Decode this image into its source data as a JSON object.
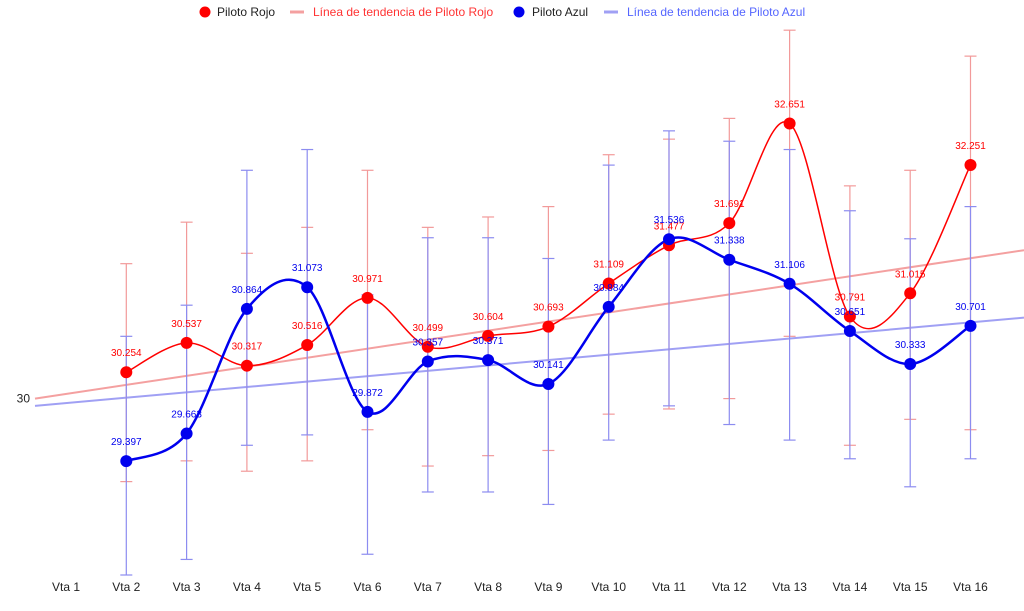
{
  "chart_data": {
    "type": "line",
    "categories": [
      "Vta 1",
      "Vta 2",
      "Vta 3",
      "Vta 4",
      "Vta 5",
      "Vta 6",
      "Vta 7",
      "Vta 8",
      "Vta 9",
      "Vta 10",
      "Vta 11",
      "Vta 12",
      "Vta 13",
      "Vta 14",
      "Vta 15",
      "Vta 16"
    ],
    "y_ticks": [
      30
    ],
    "ylim": [
      28.3,
      33.6
    ],
    "legend_position": "top",
    "series": [
      {
        "name": "Piloto Rojo",
        "color": "#ff0000",
        "values": [
          null,
          30.254,
          30.537,
          30.317,
          30.516,
          30.971,
          30.499,
          30.604,
          30.693,
          31.109,
          31.477,
          31.691,
          32.651,
          30.791,
          31.015,
          32.251
        ],
        "labels": [
          "",
          "30.254",
          "30.537",
          "30.317",
          "30.516",
          "30.971",
          "30.499",
          "30.604",
          "30.693",
          "31.109",
          "31.477",
          "31.691",
          "32.651",
          "30.791",
          "31.015",
          "32.251"
        ],
        "error_low": [
          null,
          29.2,
          29.4,
          29.3,
          29.4,
          29.7,
          29.35,
          29.45,
          29.5,
          29.85,
          29.9,
          30.0,
          30.6,
          29.55,
          29.8,
          29.7
        ],
        "error_high": [
          null,
          31.3,
          31.7,
          31.4,
          31.65,
          32.2,
          31.65,
          31.75,
          31.85,
          32.35,
          32.5,
          32.7,
          33.55,
          32.05,
          32.2,
          33.3
        ],
        "trendline": {
          "name": "Línea de tendencia de Piloto Rojo",
          "color": "#f4a0a0",
          "start": 30.0,
          "end": 31.43
        }
      },
      {
        "name": "Piloto Azul",
        "color": "#0000ee",
        "values": [
          null,
          29.397,
          29.663,
          30.864,
          31.073,
          29.872,
          30.357,
          30.371,
          30.141,
          30.884,
          31.536,
          31.338,
          31.106,
          30.651,
          30.333,
          30.701
        ],
        "labels": [
          "",
          "29.397",
          "29.663",
          "30.864",
          "31.073",
          "29.872",
          "30.357",
          "30.371",
          "30.141",
          "30.884",
          "31.536",
          "31.338",
          "31.106",
          "30.651",
          "30.333",
          "30.701"
        ],
        "error_low": [
          null,
          28.3,
          28.45,
          29.55,
          29.65,
          28.5,
          29.1,
          29.1,
          28.98,
          29.6,
          29.93,
          29.75,
          29.6,
          29.42,
          29.15,
          29.42
        ],
        "error_high": [
          null,
          30.6,
          30.9,
          32.2,
          32.4,
          31.0,
          31.55,
          31.55,
          31.35,
          32.25,
          32.58,
          32.48,
          32.4,
          31.81,
          31.54,
          31.85
        ],
        "trendline": {
          "name": "Línea de tendencia de Piloto Azul",
          "color": "#a0a0f4",
          "start": 29.93,
          "end": 30.78
        }
      }
    ]
  }
}
